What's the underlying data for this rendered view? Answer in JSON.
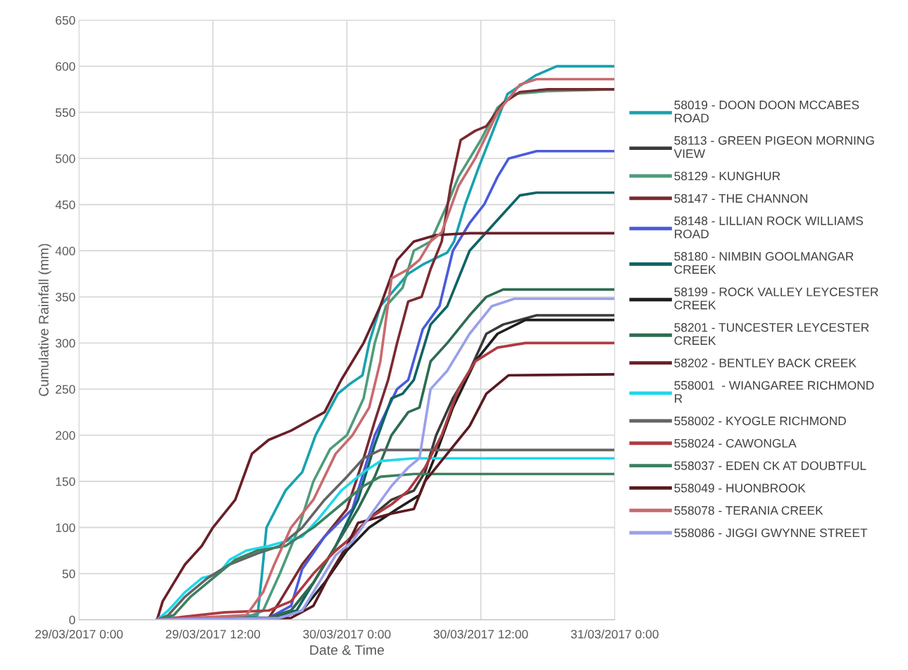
{
  "chart_data": {
    "type": "line",
    "xlabel": "Date & Time",
    "ylabel": "Cumulative Rainfall (mm)",
    "xlim": [
      "2017-03-29T00:00",
      "2017-03-31T00:00"
    ],
    "xticks": [
      {
        "value": "2017-03-29T00:00",
        "label": "29/03/2017 0:00"
      },
      {
        "value": "2017-03-29T12:00",
        "label": "29/03/2017 12:00"
      },
      {
        "value": "2017-03-30T00:00",
        "label": "30/03/2017 0:00"
      },
      {
        "value": "2017-03-30T12:00",
        "label": "30/03/2017 12:00"
      },
      {
        "value": "2017-03-31T00:00",
        "label": "31/03/2017 0:00"
      }
    ],
    "ylim": [
      0,
      650
    ],
    "yticks": [
      0,
      50,
      100,
      150,
      200,
      250,
      300,
      350,
      400,
      450,
      500,
      550,
      600,
      650
    ],
    "grid": true,
    "legend": "right",
    "marker": "none",
    "line_style": "solid",
    "series": [
      {
        "name": "58019 - DOON DOON MCCABES ROAD",
        "color": "#17a2b0",
        "x": [
          "2017-03-29T07:00",
          "2017-03-29T16:00",
          "2017-03-29T16:24",
          "2017-03-29T16:48",
          "2017-03-29T18:30",
          "2017-03-29T20:00",
          "2017-03-29T21:12",
          "2017-03-29T23:12",
          "2017-03-30T00:12",
          "2017-03-30T01:24",
          "2017-03-30T02:00",
          "2017-03-30T03:00",
          "2017-03-30T05:30",
          "2017-03-30T06:48",
          "2017-03-30T09:00",
          "2017-03-30T09:36",
          "2017-03-30T10:36",
          "2017-03-30T11:48",
          "2017-03-30T13:06",
          "2017-03-30T14:24",
          "2017-03-30T16:54",
          "2017-03-30T18:48",
          "2017-03-31T00:00"
        ],
        "values": [
          0,
          5,
          50,
          100,
          140,
          160,
          200,
          245,
          255,
          265,
          300,
          340,
          375,
          385,
          398,
          410,
          450,
          490,
          530,
          570,
          590,
          600,
          600
        ]
      },
      {
        "name": "58113 - GREEN PIGEON MORNING VIEW",
        "color": "#3a3a3a",
        "x": [
          "2017-03-29T07:00",
          "2017-03-29T17:00",
          "2017-03-29T19:00",
          "2017-03-29T21:00",
          "2017-03-29T22:30",
          "2017-03-30T00:00",
          "2017-03-30T02:00",
          "2017-03-30T04:00",
          "2017-03-30T06:00",
          "2017-03-30T07:00",
          "2017-03-30T08:00",
          "2017-03-30T09:30",
          "2017-03-30T11:00",
          "2017-03-30T12:30",
          "2017-03-30T14:00",
          "2017-03-30T17:00",
          "2017-03-31T00:00"
        ],
        "values": [
          0,
          2,
          10,
          40,
          70,
          85,
          110,
          130,
          140,
          160,
          200,
          240,
          270,
          310,
          320,
          330,
          330
        ]
      },
      {
        "name": "58129 - KUNGHUR",
        "color": "#4e9c7a",
        "x": [
          "2017-03-29T07:00",
          "2017-03-29T15:00",
          "2017-03-29T16:30",
          "2017-03-29T18:00",
          "2017-03-29T19:42",
          "2017-03-29T21:00",
          "2017-03-29T22:30",
          "2017-03-30T00:00",
          "2017-03-30T01:30",
          "2017-03-30T02:30",
          "2017-03-30T03:30",
          "2017-03-30T05:00",
          "2017-03-30T06:00",
          "2017-03-30T07:30",
          "2017-03-30T09:00",
          "2017-03-30T10:00",
          "2017-03-30T12:00",
          "2017-03-30T13:30",
          "2017-03-30T15:00",
          "2017-03-30T18:00",
          "2017-03-31T00:00"
        ],
        "values": [
          0,
          2,
          10,
          50,
          100,
          150,
          185,
          200,
          240,
          300,
          340,
          360,
          400,
          410,
          450,
          480,
          520,
          555,
          570,
          573,
          575
        ]
      },
      {
        "name": "58147 - THE CHANNON",
        "color": "#7a2a30",
        "x": [
          "2017-03-29T07:00",
          "2017-03-29T17:00",
          "2017-03-29T18:00",
          "2017-03-29T20:00",
          "2017-03-29T22:00",
          "2017-03-30T00:00",
          "2017-03-30T01:30",
          "2017-03-30T02:30",
          "2017-03-30T03:42",
          "2017-03-30T04:30",
          "2017-03-30T05:30",
          "2017-03-30T06:42",
          "2017-03-30T07:30",
          "2017-03-30T08:30",
          "2017-03-30T09:18",
          "2017-03-30T10:12",
          "2017-03-30T11:30",
          "2017-03-30T12:30",
          "2017-03-30T14:00",
          "2017-03-30T15:30",
          "2017-03-30T18:00",
          "2017-03-31T00:00"
        ],
        "values": [
          0,
          2,
          20,
          60,
          90,
          120,
          175,
          215,
          260,
          300,
          345,
          350,
          380,
          410,
          470,
          520,
          530,
          535,
          560,
          572,
          575,
          575
        ]
      },
      {
        "name": "58148 - LILLIAN ROCK WILLIAMS ROAD",
        "color": "#4a5adc",
        "x": [
          "2017-03-29T07:00",
          "2017-03-29T17:00",
          "2017-03-29T19:00",
          "2017-03-29T20:00",
          "2017-03-29T22:00",
          "2017-03-30T00:30",
          "2017-03-30T02:30",
          "2017-03-30T04:30",
          "2017-03-30T05:30",
          "2017-03-30T06:48",
          "2017-03-30T08:18",
          "2017-03-30T09:30",
          "2017-03-30T11:00",
          "2017-03-30T12:18",
          "2017-03-30T13:30",
          "2017-03-30T14:30",
          "2017-03-30T17:00",
          "2017-03-31T00:00"
        ],
        "values": [
          0,
          2,
          15,
          55,
          90,
          120,
          200,
          250,
          260,
          315,
          340,
          400,
          430,
          450,
          480,
          500,
          508,
          508
        ]
      },
      {
        "name": "58180 - NIMBIN GOOLMANGAR CREEK",
        "color": "#0e6464",
        "x": [
          "2017-03-29T07:00",
          "2017-03-29T17:00",
          "2017-03-29T19:30",
          "2017-03-29T21:00",
          "2017-03-29T23:00",
          "2017-03-30T01:00",
          "2017-03-30T02:30",
          "2017-03-30T04:00",
          "2017-03-30T05:00",
          "2017-03-30T06:00",
          "2017-03-30T07:30",
          "2017-03-30T09:00",
          "2017-03-30T11:00",
          "2017-03-30T12:30",
          "2017-03-30T14:00",
          "2017-03-30T15:30",
          "2017-03-30T17:00",
          "2017-03-31T00:00"
        ],
        "values": [
          0,
          2,
          10,
          40,
          80,
          130,
          190,
          240,
          245,
          260,
          320,
          340,
          400,
          420,
          440,
          460,
          463,
          463
        ]
      },
      {
        "name": "58199 - ROCK VALLEY LEYCESTER CREEK",
        "color": "#1e1e1e",
        "x": [
          "2017-03-29T07:00",
          "2017-03-29T18:00",
          "2017-03-29T20:00",
          "2017-03-29T22:00",
          "2017-03-30T00:00",
          "2017-03-30T02:00",
          "2017-03-30T04:30",
          "2017-03-30T06:30",
          "2017-03-30T08:00",
          "2017-03-30T09:30",
          "2017-03-30T11:30",
          "2017-03-30T13:30",
          "2017-03-30T16:00",
          "2017-03-31T00:00"
        ],
        "values": [
          0,
          2,
          10,
          40,
          75,
          100,
          120,
          135,
          180,
          230,
          280,
          310,
          325,
          325
        ]
      },
      {
        "name": "58201 - TUNCESTER LEYCESTER CREEK",
        "color": "#2e6b50",
        "x": [
          "2017-03-29T07:00",
          "2017-03-29T17:00",
          "2017-03-29T19:00",
          "2017-03-29T21:00",
          "2017-03-29T23:00",
          "2017-03-30T01:00",
          "2017-03-30T02:30",
          "2017-03-30T04:00",
          "2017-03-30T05:30",
          "2017-03-30T06:30",
          "2017-03-30T07:30",
          "2017-03-30T09:00",
          "2017-03-30T11:00",
          "2017-03-30T12:30",
          "2017-03-30T14:00",
          "2017-03-31T00:00"
        ],
        "values": [
          0,
          2,
          10,
          40,
          80,
          120,
          155,
          200,
          225,
          230,
          280,
          300,
          330,
          350,
          358,
          358
        ]
      },
      {
        "name": "58202 - BENTLEY BACK CREEK",
        "color": "#6a1f28",
        "x": [
          "2017-03-29T07:00",
          "2017-03-29T07:30",
          "2017-03-29T08:30",
          "2017-03-29T09:30",
          "2017-03-29T11:00",
          "2017-03-29T12:00",
          "2017-03-29T13:00",
          "2017-03-29T14:00",
          "2017-03-29T15:30",
          "2017-03-29T17:00",
          "2017-03-29T19:00",
          "2017-03-29T20:30",
          "2017-03-29T22:00",
          "2017-03-29T23:30",
          "2017-03-30T01:30",
          "2017-03-30T03:00",
          "2017-03-30T04:30",
          "2017-03-30T06:00",
          "2017-03-30T08:00",
          "2017-03-30T11:00",
          "2017-03-31T00:00"
        ],
        "values": [
          0,
          20,
          40,
          60,
          80,
          100,
          115,
          130,
          180,
          195,
          205,
          215,
          225,
          260,
          300,
          340,
          390,
          410,
          417,
          419,
          419
        ]
      },
      {
        "name": "558001  - WIANGAREE RICHMOND R",
        "color": "#1fd8ec",
        "x": [
          "2017-03-29T07:00",
          "2017-03-29T08:00",
          "2017-03-29T09:30",
          "2017-03-29T11:00",
          "2017-03-29T12:30",
          "2017-03-29T13:30",
          "2017-03-29T15:00",
          "2017-03-29T17:00",
          "2017-03-29T20:00",
          "2017-03-29T21:30",
          "2017-03-29T23:30",
          "2017-03-30T01:30",
          "2017-03-30T03:00",
          "2017-03-30T06:00",
          "2017-03-31T00:00"
        ],
        "values": [
          0,
          10,
          30,
          45,
          50,
          65,
          75,
          80,
          90,
          110,
          140,
          160,
          172,
          175,
          175
        ]
      },
      {
        "name": "558002 - KYOGLE RICHMOND",
        "color": "#646464",
        "x": [
          "2017-03-29T07:00",
          "2017-03-29T08:00",
          "2017-03-29T09:30",
          "2017-03-29T11:30",
          "2017-03-29T13:30",
          "2017-03-29T16:00",
          "2017-03-29T18:00",
          "2017-03-29T20:00",
          "2017-03-29T22:00",
          "2017-03-30T00:00",
          "2017-03-30T01:30",
          "2017-03-30T03:00",
          "2017-03-31T00:00"
        ],
        "values": [
          0,
          5,
          25,
          45,
          60,
          72,
          80,
          100,
          130,
          155,
          175,
          184,
          184
        ]
      },
      {
        "name": "558024 - CAWONGLA",
        "color": "#b03a40",
        "x": [
          "2017-03-29T07:00",
          "2017-03-29T13:00",
          "2017-03-29T17:00",
          "2017-03-29T19:00",
          "2017-03-29T21:00",
          "2017-03-29T23:00",
          "2017-03-30T00:30",
          "2017-03-30T02:00",
          "2017-03-30T04:00",
          "2017-03-30T05:30",
          "2017-03-30T07:00",
          "2017-03-30T08:30",
          "2017-03-30T10:00",
          "2017-03-30T11:30",
          "2017-03-30T13:30",
          "2017-03-30T16:00",
          "2017-03-31T00:00"
        ],
        "values": [
          0,
          8,
          10,
          20,
          50,
          75,
          90,
          110,
          125,
          140,
          165,
          200,
          250,
          280,
          295,
          300,
          300
        ]
      },
      {
        "name": "558037 - EDEN CK AT DOUBTFUL",
        "color": "#3d8060",
        "x": [
          "2017-03-29T07:00",
          "2017-03-29T08:30",
          "2017-03-29T10:00",
          "2017-03-29T12:00",
          "2017-03-29T14:00",
          "2017-03-29T16:00",
          "2017-03-29T18:30",
          "2017-03-29T21:00",
          "2017-03-29T23:30",
          "2017-03-30T01:30",
          "2017-03-30T03:00",
          "2017-03-30T06:00",
          "2017-03-31T00:00"
        ],
        "values": [
          0,
          5,
          25,
          45,
          65,
          75,
          80,
          100,
          125,
          145,
          155,
          158,
          158
        ]
      },
      {
        "name": "558049 - HUONBROOK",
        "color": "#5a1a20",
        "x": [
          "2017-03-29T07:00",
          "2017-03-29T19:00",
          "2017-03-29T21:00",
          "2017-03-29T22:30",
          "2017-03-30T00:00",
          "2017-03-30T01:00",
          "2017-03-30T04:00",
          "2017-03-30T06:00",
          "2017-03-30T07:00",
          "2017-03-30T09:00",
          "2017-03-30T11:00",
          "2017-03-30T12:30",
          "2017-03-30T14:30",
          "2017-03-31T00:00"
        ],
        "values": [
          0,
          2,
          15,
          50,
          80,
          105,
          115,
          120,
          150,
          180,
          210,
          245,
          265,
          266
        ]
      },
      {
        "name": "558078 - TERANIA CREEK",
        "color": "#c86a6e",
        "x": [
          "2017-03-29T07:00",
          "2017-03-29T15:00",
          "2017-03-29T16:30",
          "2017-03-29T17:30",
          "2017-03-29T19:00",
          "2017-03-29T21:00",
          "2017-03-29T23:00",
          "2017-03-30T00:30",
          "2017-03-30T02:00",
          "2017-03-30T03:00",
          "2017-03-30T04:00",
          "2017-03-30T05:30",
          "2017-03-30T06:30",
          "2017-03-30T07:30",
          "2017-03-30T08:30",
          "2017-03-30T10:00",
          "2017-03-30T11:30",
          "2017-03-30T13:30",
          "2017-03-30T15:30",
          "2017-03-30T17:00",
          "2017-03-31T00:00"
        ],
        "values": [
          0,
          5,
          30,
          60,
          100,
          130,
          180,
          200,
          230,
          280,
          370,
          380,
          390,
          410,
          420,
          470,
          500,
          550,
          580,
          586,
          586
        ]
      },
      {
        "name": "558086 - JIGGI GWYNNE STREET",
        "color": "#9aa0e8",
        "x": [
          "2017-03-29T07:00",
          "2017-03-29T18:00",
          "2017-03-29T20:00",
          "2017-03-29T21:30",
          "2017-03-29T23:00",
          "2017-03-30T00:30",
          "2017-03-30T02:30",
          "2017-03-30T04:00",
          "2017-03-30T05:30",
          "2017-03-30T06:30",
          "2017-03-30T07:30",
          "2017-03-30T09:00",
          "2017-03-30T11:00",
          "2017-03-30T13:00",
          "2017-03-30T15:00",
          "2017-03-31T00:00"
        ],
        "values": [
          0,
          2,
          10,
          40,
          70,
          85,
          120,
          145,
          165,
          175,
          250,
          270,
          310,
          340,
          348,
          348
        ]
      }
    ]
  }
}
